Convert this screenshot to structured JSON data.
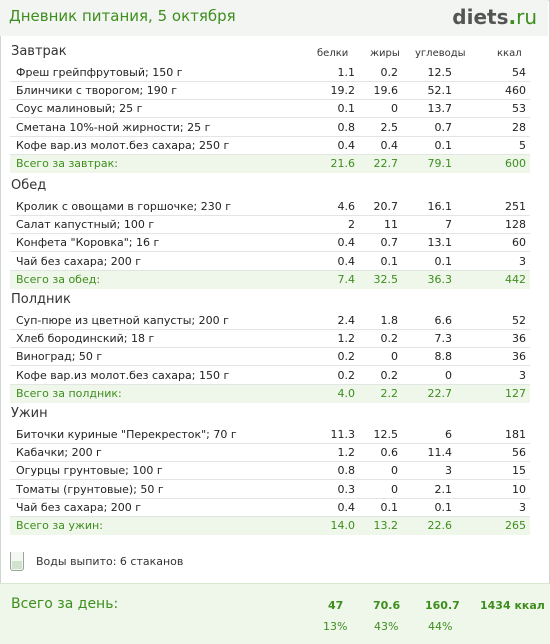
{
  "header": {
    "title": "Дневник питания, 5 октября",
    "logo_main": "diets",
    "logo_dot": ".",
    "logo_tld": "ru"
  },
  "columns": {
    "protein": "белки",
    "fat": "жиры",
    "carbs": "углеводы",
    "kcal": "ккал"
  },
  "meals": [
    {
      "title": "Завтрак",
      "items": [
        {
          "name": "Фреш грейпфрутовый; 150 г",
          "p": "1.1",
          "f": "0.2",
          "c": "12.5",
          "k": "54"
        },
        {
          "name": "Блинчики с творогом; 190 г",
          "p": "19.2",
          "f": "19.6",
          "c": "52.1",
          "k": "460"
        },
        {
          "name": "Соус малиновый; 25 г",
          "p": "0.1",
          "f": "0",
          "c": "13.7",
          "k": "53"
        },
        {
          "name": "Сметана 10%-ной жирности; 25 г",
          "p": "0.8",
          "f": "2.5",
          "c": "0.7",
          "k": "28"
        },
        {
          "name": "Кофе вар.из молот.без сахара; 250 г",
          "p": "0.4",
          "f": "0.4",
          "c": "0.1",
          "k": "5"
        }
      ],
      "total": {
        "name": "Всего за завтрак:",
        "p": "21.6",
        "f": "22.7",
        "c": "79.1",
        "k": "600"
      }
    },
    {
      "title": "Обед",
      "items": [
        {
          "name": "Кролик с овощами в горшочке; 230 г",
          "p": "4.6",
          "f": "20.7",
          "c": "16.1",
          "k": "251"
        },
        {
          "name": "Салат капустный; 100 г",
          "p": "2",
          "f": "11",
          "c": "7",
          "k": "128"
        },
        {
          "name": "Конфета \"Коровка\"; 16 г",
          "p": "0.4",
          "f": "0.7",
          "c": "13.1",
          "k": "60"
        },
        {
          "name": "Чай без сахара; 200 г",
          "p": "0.4",
          "f": "0.1",
          "c": "0.1",
          "k": "3"
        }
      ],
      "total": {
        "name": "Всего за обед:",
        "p": "7.4",
        "f": "32.5",
        "c": "36.3",
        "k": "442"
      }
    },
    {
      "title": "Полдник",
      "items": [
        {
          "name": "Суп-пюре из цветной капусты; 200 г",
          "p": "2.4",
          "f": "1.8",
          "c": "6.6",
          "k": "52"
        },
        {
          "name": "Хлеб бородинский; 18 г",
          "p": "1.2",
          "f": "0.2",
          "c": "7.3",
          "k": "36"
        },
        {
          "name": "Виноград; 50 г",
          "p": "0.2",
          "f": "0",
          "c": "8.8",
          "k": "36"
        },
        {
          "name": "Кофе вар.из молот.без сахара; 150 г",
          "p": "0.2",
          "f": "0.2",
          "c": "0",
          "k": "3"
        }
      ],
      "total": {
        "name": "Всего за полдник:",
        "p": "4.0",
        "f": "2.2",
        "c": "22.7",
        "k": "127"
      }
    },
    {
      "title": "Ужин",
      "items": [
        {
          "name": "Биточки куриные \"Перекресток\"; 70 г",
          "p": "11.3",
          "f": "12.5",
          "c": "6",
          "k": "181"
        },
        {
          "name": "Кабачки; 200 г",
          "p": "1.2",
          "f": "0.6",
          "c": "11.4",
          "k": "56"
        },
        {
          "name": "Огурцы грунтовые; 100 г",
          "p": "0.8",
          "f": "0",
          "c": "3",
          "k": "15"
        },
        {
          "name": "Томаты (грунтовые); 50 г",
          "p": "0.3",
          "f": "0",
          "c": "2.1",
          "k": "10"
        },
        {
          "name": "Чай без сахара; 200 г",
          "p": "0.4",
          "f": "0.1",
          "c": "0.1",
          "k": "3"
        }
      ],
      "total": {
        "name": "Всего за ужин:",
        "p": "14.0",
        "f": "13.2",
        "c": "22.6",
        "k": "265"
      }
    }
  ],
  "water": {
    "text": "Воды выпито: 6 стаканов",
    "icon": "glass-icon"
  },
  "day_total": {
    "label": "Всего за день:",
    "p": "47",
    "f": "70.6",
    "c": "160.7",
    "k": "1434 ккал",
    "p_pct": "13%",
    "f_pct": "43%",
    "c_pct": "44%"
  },
  "colors": {
    "accent": "#3e8e1e",
    "total_bg": "#eef7ea"
  }
}
